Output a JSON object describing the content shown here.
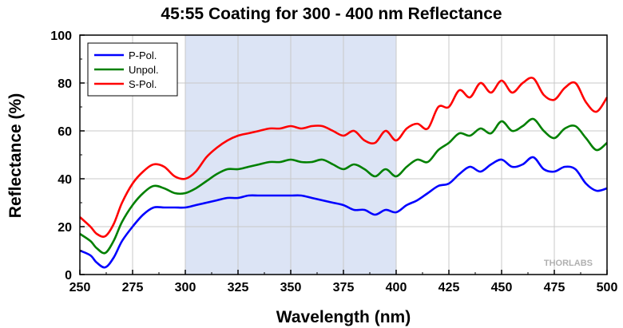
{
  "chart_data": {
    "type": "line",
    "title": "45:55 Coating for 300 - 400 nm Reflectance",
    "xlabel": "Wavelength (nm)",
    "ylabel": "Reflectance (%)",
    "xlim": [
      250,
      500
    ],
    "ylim": [
      0,
      100
    ],
    "xticks": [
      250,
      275,
      300,
      325,
      350,
      375,
      400,
      425,
      450,
      475,
      500
    ],
    "yticks": [
      0,
      20,
      40,
      60,
      80,
      100
    ],
    "grid": true,
    "legend_position": "top-left",
    "highlight_band": {
      "x_start": 300,
      "x_end": 400,
      "color": "#dce4f5"
    },
    "watermark": "THORLABS",
    "x": [
      250,
      255,
      258,
      262,
      266,
      270,
      275,
      280,
      285,
      290,
      295,
      300,
      305,
      310,
      315,
      320,
      325,
      330,
      335,
      340,
      345,
      350,
      355,
      360,
      365,
      370,
      375,
      380,
      385,
      390,
      395,
      400,
      405,
      410,
      415,
      420,
      425,
      430,
      435,
      440,
      445,
      450,
      455,
      460,
      465,
      470,
      475,
      480,
      485,
      490,
      495,
      500
    ],
    "series": [
      {
        "name": "P-Pol.",
        "color": "#0000ff",
        "values": [
          10,
          8,
          5,
          3,
          7,
          14,
          20,
          25,
          28,
          28,
          28,
          28,
          29,
          30,
          31,
          32,
          32,
          33,
          33,
          33,
          33,
          33,
          33,
          32,
          31,
          30,
          29,
          27,
          27,
          25,
          27,
          26,
          29,
          31,
          34,
          37,
          38,
          42,
          45,
          43,
          46,
          48,
          45,
          46,
          49,
          44,
          43,
          45,
          44,
          38,
          35,
          36
        ]
      },
      {
        "name": "Unpol.",
        "color": "#008000",
        "values": [
          17,
          14,
          11,
          9,
          14,
          22,
          29,
          34,
          37,
          36,
          34,
          34,
          36,
          39,
          42,
          44,
          44,
          45,
          46,
          47,
          47,
          48,
          47,
          47,
          48,
          46,
          44,
          46,
          44,
          41,
          44,
          41,
          45,
          48,
          47,
          52,
          55,
          59,
          58,
          61,
          59,
          64,
          60,
          62,
          65,
          60,
          57,
          61,
          62,
          57,
          52,
          55
        ]
      },
      {
        "name": "S-Pol.",
        "color": "#ff0000",
        "values": [
          24,
          20,
          17,
          16,
          21,
          30,
          38,
          43,
          46,
          45,
          41,
          40,
          43,
          49,
          53,
          56,
          58,
          59,
          60,
          61,
          61,
          62,
          61,
          62,
          62,
          60,
          58,
          60,
          56,
          55,
          60,
          56,
          61,
          63,
          61,
          70,
          70,
          77,
          74,
          80,
          76,
          81,
          76,
          80,
          82,
          75,
          73,
          78,
          80,
          72,
          68,
          74
        ]
      }
    ]
  }
}
